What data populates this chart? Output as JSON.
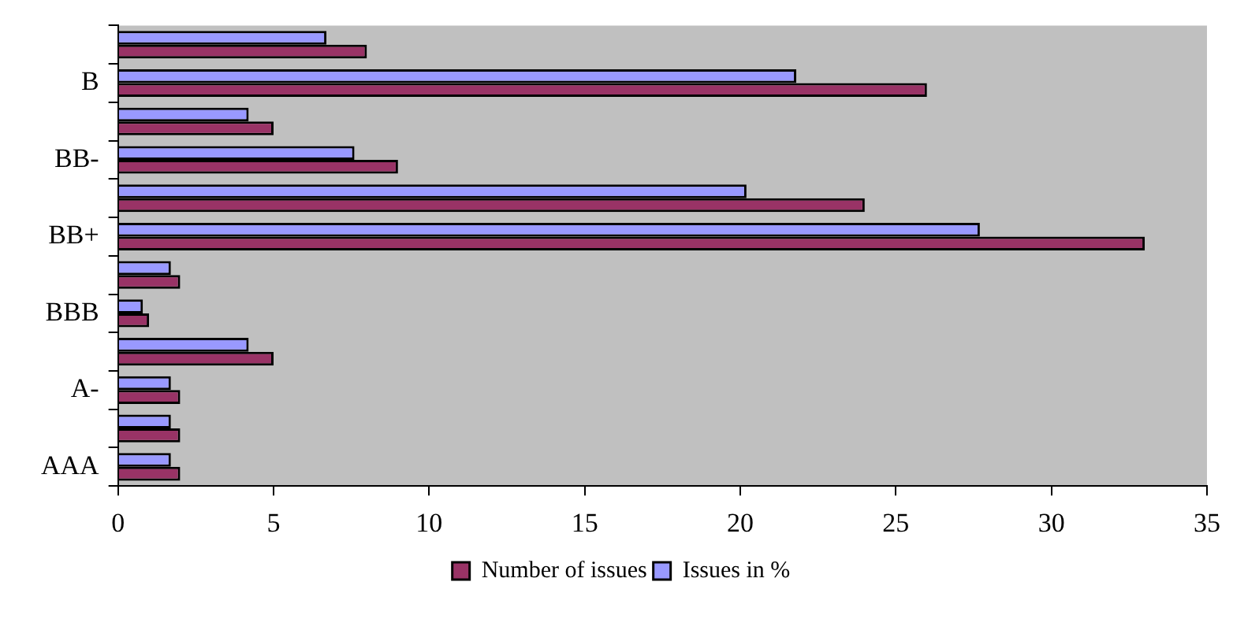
{
  "chart_data": {
    "type": "bar",
    "orientation": "horizontal",
    "categories": [
      null,
      "B",
      null,
      "BB-",
      null,
      "BB+",
      null,
      "BBB",
      null,
      "A-",
      null,
      "AAA"
    ],
    "series": [
      {
        "name": "Number of issues",
        "color": "#993366",
        "values": [
          8,
          26,
          5,
          9,
          24,
          33,
          2,
          1,
          5,
          2,
          2,
          2
        ]
      },
      {
        "name": "Issues in %",
        "color": "#9999ff",
        "values": [
          6.7,
          21.8,
          4.2,
          7.6,
          20.2,
          27.7,
          1.7,
          0.8,
          4.2,
          1.7,
          1.7,
          1.7
        ]
      }
    ],
    "xlim": [
      0,
      35
    ],
    "xticks": [
      0,
      5,
      10,
      15,
      20,
      25,
      30,
      35
    ],
    "grid": false,
    "legend": "bottom"
  }
}
